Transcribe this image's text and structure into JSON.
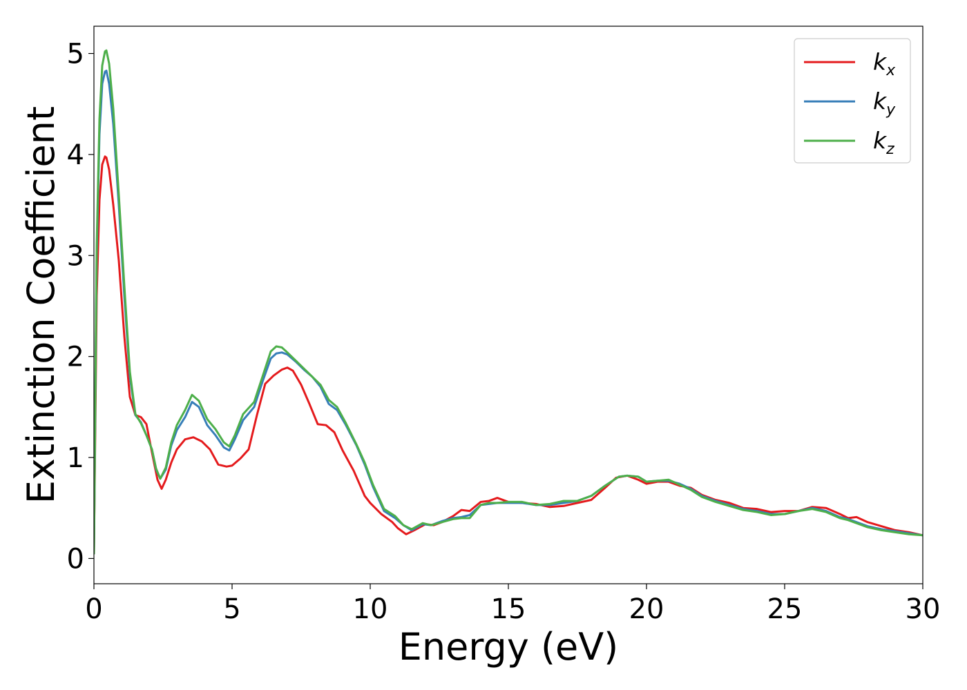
{
  "chart_data": {
    "type": "line",
    "xlabel": "Energy (eV)",
    "ylabel": "Extinction Coefficient",
    "xlim": [
      0,
      30
    ],
    "ylim": [
      -0.25,
      5.27
    ],
    "xticks": [
      0,
      5,
      10,
      15,
      20,
      25,
      30
    ],
    "xtick_labels": [
      "0",
      "5",
      "10",
      "15",
      "20",
      "25",
      "30"
    ],
    "yticks": [
      0,
      1,
      2,
      3,
      4,
      5
    ],
    "ytick_labels": [
      "0",
      "1",
      "2",
      "3",
      "4",
      "5"
    ],
    "grid": false,
    "legend_position": "top-right",
    "series": [
      {
        "name": "k_x",
        "label_base": "k",
        "label_sub": "x",
        "color": "#e41a1c",
        "x": [
          0,
          0.1,
          0.2,
          0.3,
          0.4,
          0.45,
          0.55,
          0.7,
          0.9,
          1.1,
          1.3,
          1.5,
          1.7,
          1.9,
          2.1,
          2.3,
          2.45,
          2.6,
          2.8,
          3.0,
          3.3,
          3.6,
          3.9,
          4.2,
          4.5,
          4.8,
          5.0,
          5.3,
          5.6,
          5.9,
          6.2,
          6.5,
          6.8,
          7.0,
          7.2,
          7.5,
          7.8,
          8.1,
          8.4,
          8.7,
          9.0,
          9.4,
          9.8,
          10.0,
          10.4,
          10.8,
          11.0,
          11.3,
          11.6,
          12.0,
          12.3,
          12.6,
          13.0,
          13.3,
          13.6,
          14.0,
          14.3,
          14.6,
          15.0,
          15.5,
          16.0,
          16.5,
          17.0,
          17.5,
          18.0,
          18.5,
          18.9,
          19.3,
          19.7,
          20.0,
          20.4,
          20.8,
          21.2,
          21.6,
          22.0,
          22.5,
          23.0,
          23.5,
          24.0,
          24.5,
          25.0,
          25.5,
          26.0,
          26.5,
          27.0,
          27.3,
          27.6,
          28.0,
          28.5,
          29.0,
          29.5,
          30.0
        ],
        "y": [
          0.05,
          2.6,
          3.55,
          3.9,
          3.98,
          3.97,
          3.85,
          3.5,
          2.95,
          2.2,
          1.6,
          1.42,
          1.4,
          1.33,
          1.05,
          0.78,
          0.69,
          0.78,
          0.95,
          1.08,
          1.18,
          1.2,
          1.16,
          1.08,
          0.93,
          0.91,
          0.92,
          0.99,
          1.08,
          1.42,
          1.73,
          1.81,
          1.87,
          1.89,
          1.86,
          1.72,
          1.53,
          1.33,
          1.32,
          1.25,
          1.07,
          0.87,
          0.62,
          0.55,
          0.44,
          0.36,
          0.3,
          0.24,
          0.28,
          0.34,
          0.33,
          0.36,
          0.42,
          0.48,
          0.47,
          0.56,
          0.57,
          0.6,
          0.56,
          0.55,
          0.54,
          0.51,
          0.52,
          0.55,
          0.58,
          0.7,
          0.8,
          0.82,
          0.78,
          0.74,
          0.76,
          0.76,
          0.72,
          0.7,
          0.63,
          0.58,
          0.55,
          0.5,
          0.49,
          0.46,
          0.47,
          0.47,
          0.51,
          0.5,
          0.44,
          0.4,
          0.41,
          0.36,
          0.32,
          0.28,
          0.26,
          0.23
        ]
      },
      {
        "name": "k_y",
        "label_base": "k",
        "label_sub": "y",
        "color": "#377eb8",
        "x": [
          0,
          0.1,
          0.2,
          0.3,
          0.4,
          0.45,
          0.55,
          0.7,
          0.9,
          1.1,
          1.3,
          1.5,
          1.7,
          1.9,
          2.1,
          2.25,
          2.4,
          2.6,
          2.8,
          3.0,
          3.3,
          3.55,
          3.8,
          4.1,
          4.4,
          4.7,
          4.9,
          5.1,
          5.4,
          5.8,
          6.1,
          6.4,
          6.6,
          6.8,
          7.0,
          7.3,
          7.6,
          7.9,
          8.2,
          8.5,
          8.8,
          9.1,
          9.5,
          9.8,
          10.1,
          10.5,
          10.9,
          11.2,
          11.5,
          11.9,
          12.2,
          12.6,
          13.0,
          13.3,
          13.6,
          14.0,
          14.3,
          14.6,
          15.0,
          15.5,
          16.0,
          16.5,
          17.0,
          17.5,
          18.0,
          18.5,
          19.0,
          19.3,
          19.7,
          20.0,
          20.4,
          20.8,
          21.2,
          21.6,
          22.0,
          22.5,
          23.0,
          23.5,
          24.0,
          24.5,
          25.0,
          25.5,
          26.0,
          26.5,
          27.0,
          27.3,
          27.6,
          28.0,
          28.5,
          29.0,
          29.5,
          30.0
        ],
        "y": [
          0.05,
          3.0,
          4.2,
          4.7,
          4.82,
          4.83,
          4.7,
          4.3,
          3.5,
          2.6,
          1.8,
          1.42,
          1.35,
          1.22,
          1.08,
          0.88,
          0.79,
          0.88,
          1.12,
          1.27,
          1.4,
          1.55,
          1.5,
          1.32,
          1.22,
          1.1,
          1.07,
          1.18,
          1.37,
          1.5,
          1.75,
          1.98,
          2.03,
          2.04,
          2.02,
          1.95,
          1.87,
          1.8,
          1.7,
          1.53,
          1.47,
          1.33,
          1.12,
          0.93,
          0.71,
          0.47,
          0.4,
          0.33,
          0.28,
          0.34,
          0.33,
          0.37,
          0.4,
          0.41,
          0.43,
          0.53,
          0.54,
          0.55,
          0.55,
          0.55,
          0.53,
          0.53,
          0.55,
          0.57,
          0.62,
          0.72,
          0.81,
          0.82,
          0.81,
          0.76,
          0.77,
          0.77,
          0.74,
          0.69,
          0.62,
          0.57,
          0.53,
          0.49,
          0.47,
          0.44,
          0.44,
          0.47,
          0.5,
          0.47,
          0.41,
          0.39,
          0.36,
          0.32,
          0.29,
          0.27,
          0.25,
          0.23
        ]
      },
      {
        "name": "k_z",
        "label_base": "k",
        "label_sub": "z",
        "color": "#4daf4a",
        "x": [
          0,
          0.1,
          0.2,
          0.3,
          0.4,
          0.45,
          0.55,
          0.7,
          0.9,
          1.1,
          1.3,
          1.5,
          1.7,
          1.9,
          2.1,
          2.25,
          2.4,
          2.6,
          2.8,
          3.0,
          3.3,
          3.55,
          3.8,
          4.1,
          4.4,
          4.7,
          4.9,
          5.1,
          5.4,
          5.8,
          6.1,
          6.4,
          6.6,
          6.8,
          7.0,
          7.3,
          7.6,
          7.9,
          8.2,
          8.5,
          8.8,
          9.1,
          9.5,
          9.8,
          10.1,
          10.5,
          10.9,
          11.2,
          11.5,
          11.9,
          12.2,
          12.6,
          13.0,
          13.3,
          13.6,
          14.0,
          14.3,
          14.6,
          15.0,
          15.5,
          16.0,
          16.5,
          17.0,
          17.5,
          18.0,
          18.5,
          19.0,
          19.3,
          19.7,
          20.0,
          20.4,
          20.8,
          21.2,
          21.6,
          22.0,
          22.5,
          23.0,
          23.5,
          24.0,
          24.5,
          25.0,
          25.5,
          26.0,
          26.5,
          27.0,
          27.3,
          27.6,
          28.0,
          28.5,
          29.0,
          29.5,
          30.0
        ],
        "y": [
          0.05,
          3.1,
          4.35,
          4.88,
          5.02,
          5.03,
          4.9,
          4.45,
          3.6,
          2.7,
          1.85,
          1.43,
          1.34,
          1.22,
          1.08,
          0.89,
          0.79,
          0.9,
          1.15,
          1.32,
          1.47,
          1.62,
          1.56,
          1.38,
          1.28,
          1.15,
          1.11,
          1.22,
          1.43,
          1.55,
          1.8,
          2.05,
          2.1,
          2.09,
          2.04,
          1.96,
          1.88,
          1.8,
          1.72,
          1.57,
          1.5,
          1.35,
          1.13,
          0.95,
          0.73,
          0.49,
          0.42,
          0.33,
          0.29,
          0.35,
          0.33,
          0.36,
          0.39,
          0.4,
          0.4,
          0.53,
          0.55,
          0.55,
          0.56,
          0.56,
          0.53,
          0.54,
          0.57,
          0.57,
          0.62,
          0.72,
          0.81,
          0.82,
          0.81,
          0.76,
          0.77,
          0.78,
          0.73,
          0.68,
          0.61,
          0.56,
          0.52,
          0.48,
          0.46,
          0.43,
          0.44,
          0.47,
          0.49,
          0.46,
          0.4,
          0.38,
          0.35,
          0.31,
          0.28,
          0.26,
          0.24,
          0.23
        ]
      }
    ]
  }
}
